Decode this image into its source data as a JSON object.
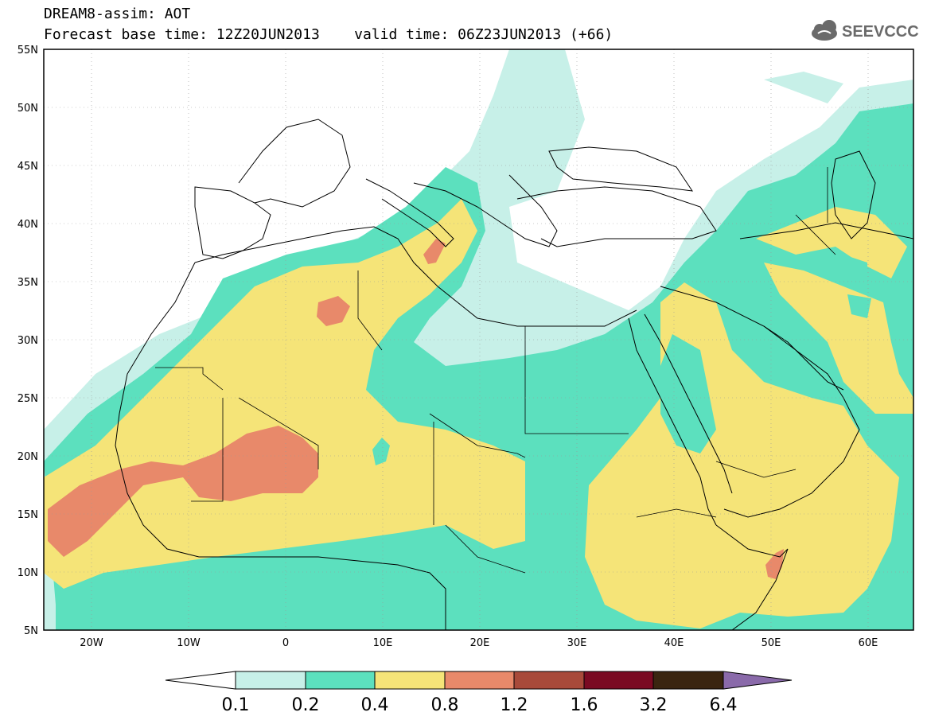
{
  "header": {
    "title_line1": "DREAM8-assim: AOT",
    "title_line2": "Forecast base time: 12Z20JUN2013    valid time: 06Z23JUN2013 (+66)",
    "logo_text": "SEEVCCC",
    "logo_icon": "cloud-icon"
  },
  "map": {
    "lat_labels": [
      "55N",
      "50N",
      "45N",
      "40N",
      "35N",
      "30N",
      "25N",
      "20N",
      "15N",
      "10N",
      "5N"
    ],
    "lon_labels": [
      "20W",
      "10W",
      "0",
      "10E",
      "20E",
      "30E",
      "40E",
      "50E",
      "60E"
    ]
  },
  "legend": {
    "colors": {
      "under": "#ffffff",
      "bins": [
        "#c7f0e8",
        "#5ce0be",
        "#f5e478",
        "#e8896a",
        "#a84a3a",
        "#7a0a22",
        "#3a2510"
      ],
      "over": "#8a6aaa"
    },
    "labels": [
      "0.1",
      "0.2",
      "0.4",
      "0.8",
      "1.2",
      "1.6",
      "3.2",
      "6.4"
    ]
  }
}
